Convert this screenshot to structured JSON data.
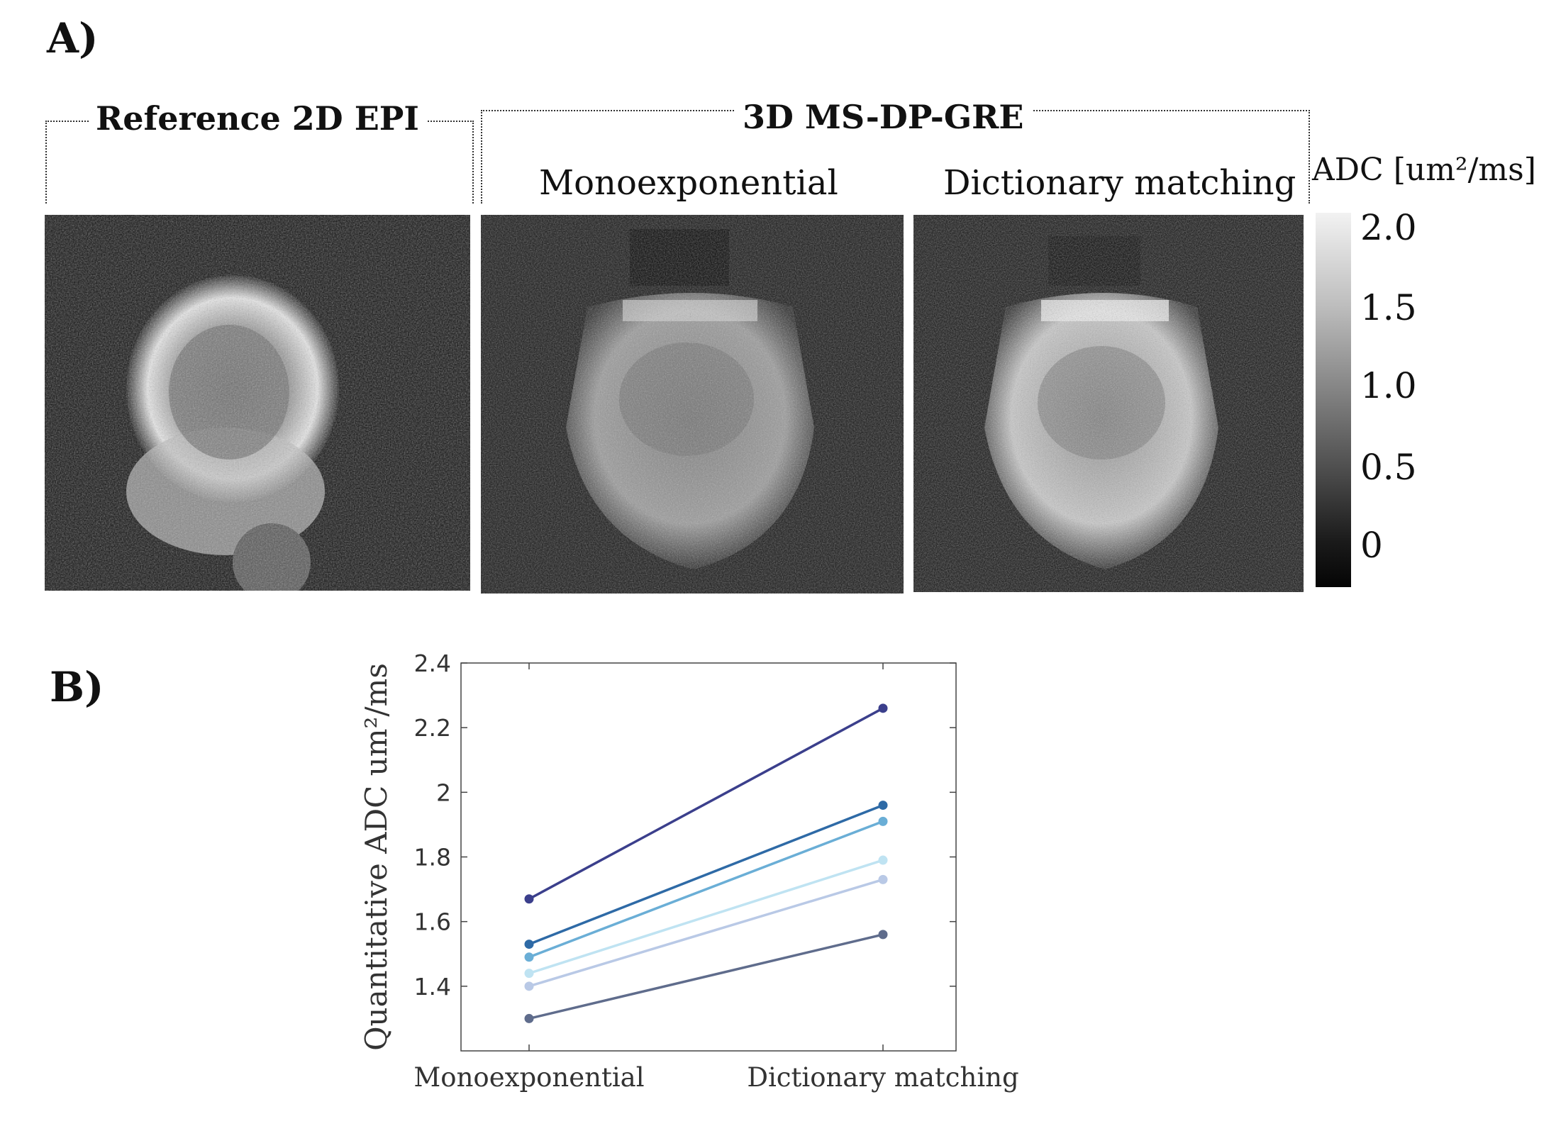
{
  "panel_a": {
    "letter": "A)",
    "ref_title": "Reference 2D EPI",
    "gre_title": "3D MS-DP-GRE",
    "mono_label": "Monoexponential",
    "dict_label": "Dictionary matching",
    "colorbar": {
      "title": "ADC [um²/ms]",
      "ticks": [
        "2.0",
        "1.5",
        "1.0",
        "0.5",
        "0"
      ]
    }
  },
  "panel_b": {
    "letter": "B)"
  },
  "chart_data": {
    "type": "line",
    "categories": [
      "Monoexponential",
      "Dictionary matching"
    ],
    "ylabel": "Quantitative ADC um²/ms",
    "xlabel": "",
    "title": "",
    "ylim": [
      1.2,
      2.4
    ],
    "yticks": [
      "1.4",
      "1.6",
      "1.8",
      "2",
      "2.2",
      "2.4"
    ],
    "grid": false,
    "series": [
      {
        "values": [
          1.67,
          2.26
        ],
        "color": "#3b3f8c"
      },
      {
        "values": [
          1.53,
          1.96
        ],
        "color": "#2e6aa6"
      },
      {
        "values": [
          1.49,
          1.91
        ],
        "color": "#6aaed6"
      },
      {
        "values": [
          1.44,
          1.79
        ],
        "color": "#bfe3f2"
      },
      {
        "values": [
          1.4,
          1.73
        ],
        "color": "#b9c9e6"
      },
      {
        "values": [
          1.3,
          1.56
        ],
        "color": "#5f6c8c"
      }
    ]
  }
}
